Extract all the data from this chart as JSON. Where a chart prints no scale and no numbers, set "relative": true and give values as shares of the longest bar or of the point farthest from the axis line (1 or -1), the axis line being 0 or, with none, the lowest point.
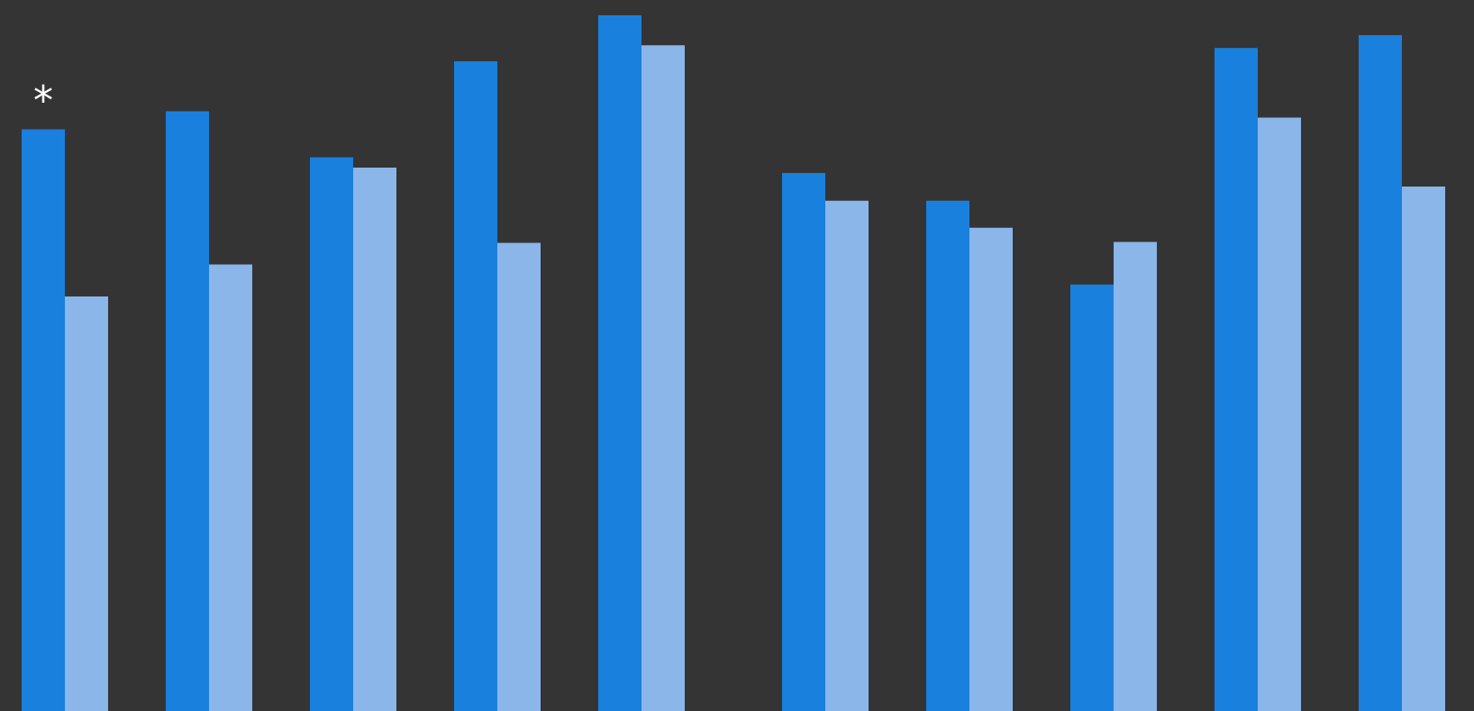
{
  "chart_data": [
    {
      "type": "bar",
      "relative": true,
      "categories": [
        null,
        null,
        null,
        null,
        null
      ],
      "series": [
        {
          "color": "#1a80dd",
          "values": [
            0.836,
            0.862,
            0.796,
            0.934,
            1
          ]
        },
        {
          "color": "#8ab6ea",
          "values": [
            0.596,
            0.642,
            0.781,
            0.673,
            0.957
          ]
        }
      ],
      "annotations": [
        "*"
      ]
    },
    {
      "type": "bar",
      "relative": true,
      "categories": [
        null,
        null,
        null,
        null,
        null
      ],
      "series": [
        {
          "color": "#1a80dd",
          "values": [
            0.796,
            0.755,
            0.631,
            0.981,
            1
          ]
        },
        {
          "color": "#8ab6ea",
          "values": [
            0.755,
            0.715,
            0.694,
            0.878,
            0.776
          ]
        }
      ]
    }
  ]
}
